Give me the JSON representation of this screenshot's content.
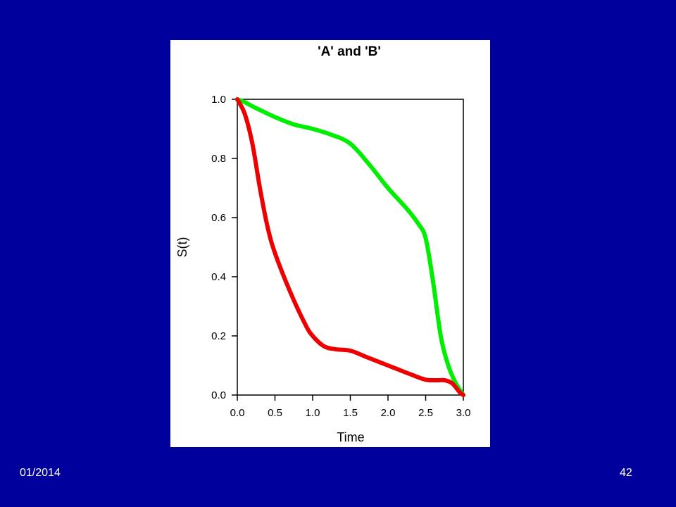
{
  "slide": {
    "footer_date": "01/2014",
    "page_number": "42",
    "background_color": "#00009C"
  },
  "chart_data": {
    "type": "line",
    "title": "'A' and 'B'",
    "xlabel": "Time",
    "ylabel": "S(t)",
    "xlim": [
      0,
      3
    ],
    "ylim": [
      0,
      1
    ],
    "x_ticks": [
      "0.0",
      "0.5",
      "1.0",
      "1.5",
      "2.0",
      "2.5",
      "3.0"
    ],
    "y_ticks": [
      "0.0",
      "0.2",
      "0.4",
      "0.6",
      "0.8",
      "1.0"
    ],
    "grid": false,
    "legend": "none",
    "series": [
      {
        "color": "#00EE00",
        "x": [
          0.0,
          0.1,
          0.25,
          0.5,
          0.75,
          1.0,
          1.25,
          1.5,
          1.75,
          2.0,
          2.25,
          2.4,
          2.5,
          2.6,
          2.7,
          2.8,
          2.9,
          3.0
        ],
        "y": [
          1.0,
          0.99,
          0.97,
          0.94,
          0.915,
          0.9,
          0.88,
          0.85,
          0.78,
          0.7,
          0.63,
          0.58,
          0.53,
          0.38,
          0.2,
          0.1,
          0.04,
          0.0
        ]
      },
      {
        "color": "#EE0000",
        "x": [
          0.0,
          0.1,
          0.2,
          0.3,
          0.4,
          0.5,
          0.7,
          0.9,
          1.0,
          1.15,
          1.3,
          1.5,
          1.7,
          1.9,
          2.1,
          2.3,
          2.5,
          2.65,
          2.75,
          2.85,
          2.95,
          3.0
        ],
        "y": [
          1.0,
          0.95,
          0.85,
          0.7,
          0.57,
          0.48,
          0.35,
          0.24,
          0.2,
          0.165,
          0.155,
          0.15,
          0.13,
          0.11,
          0.09,
          0.07,
          0.052,
          0.05,
          0.05,
          0.04,
          0.01,
          0.0
        ]
      }
    ]
  }
}
